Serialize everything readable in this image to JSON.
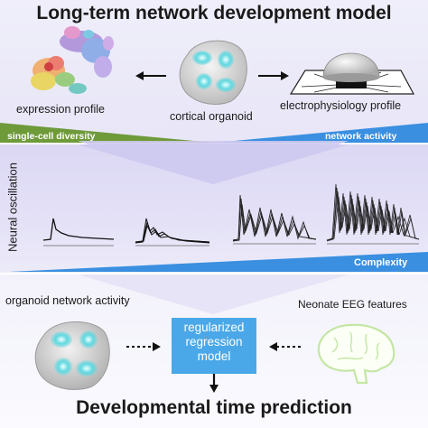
{
  "header": {
    "title": "Long-term network development model"
  },
  "top_panel": {
    "expression_caption": "expression profile",
    "organoid_caption": "cortical organoid",
    "electro_caption": "electrophysiology profile",
    "diversity_label": "single-cell diversity",
    "activity_label": "network activity"
  },
  "middle_panel": {
    "y_axis_label": "Neural oscillation",
    "complexity_label": "Complexity"
  },
  "bottom_panel": {
    "organoid_caption": "organoid network activity",
    "eeg_caption": "Neonate EEG features",
    "model_line1": "regularized",
    "model_line2": "regression",
    "model_line3": "model",
    "prediction_title": "Developmental time prediction"
  },
  "colors": {
    "green_wedge": "#6e9a3a",
    "blue_wedge": "#3a8fe0",
    "model_box": "#4aa8e8",
    "organoid_cell": "#5fd8e0",
    "brain_outline": "#c4e6a4"
  }
}
